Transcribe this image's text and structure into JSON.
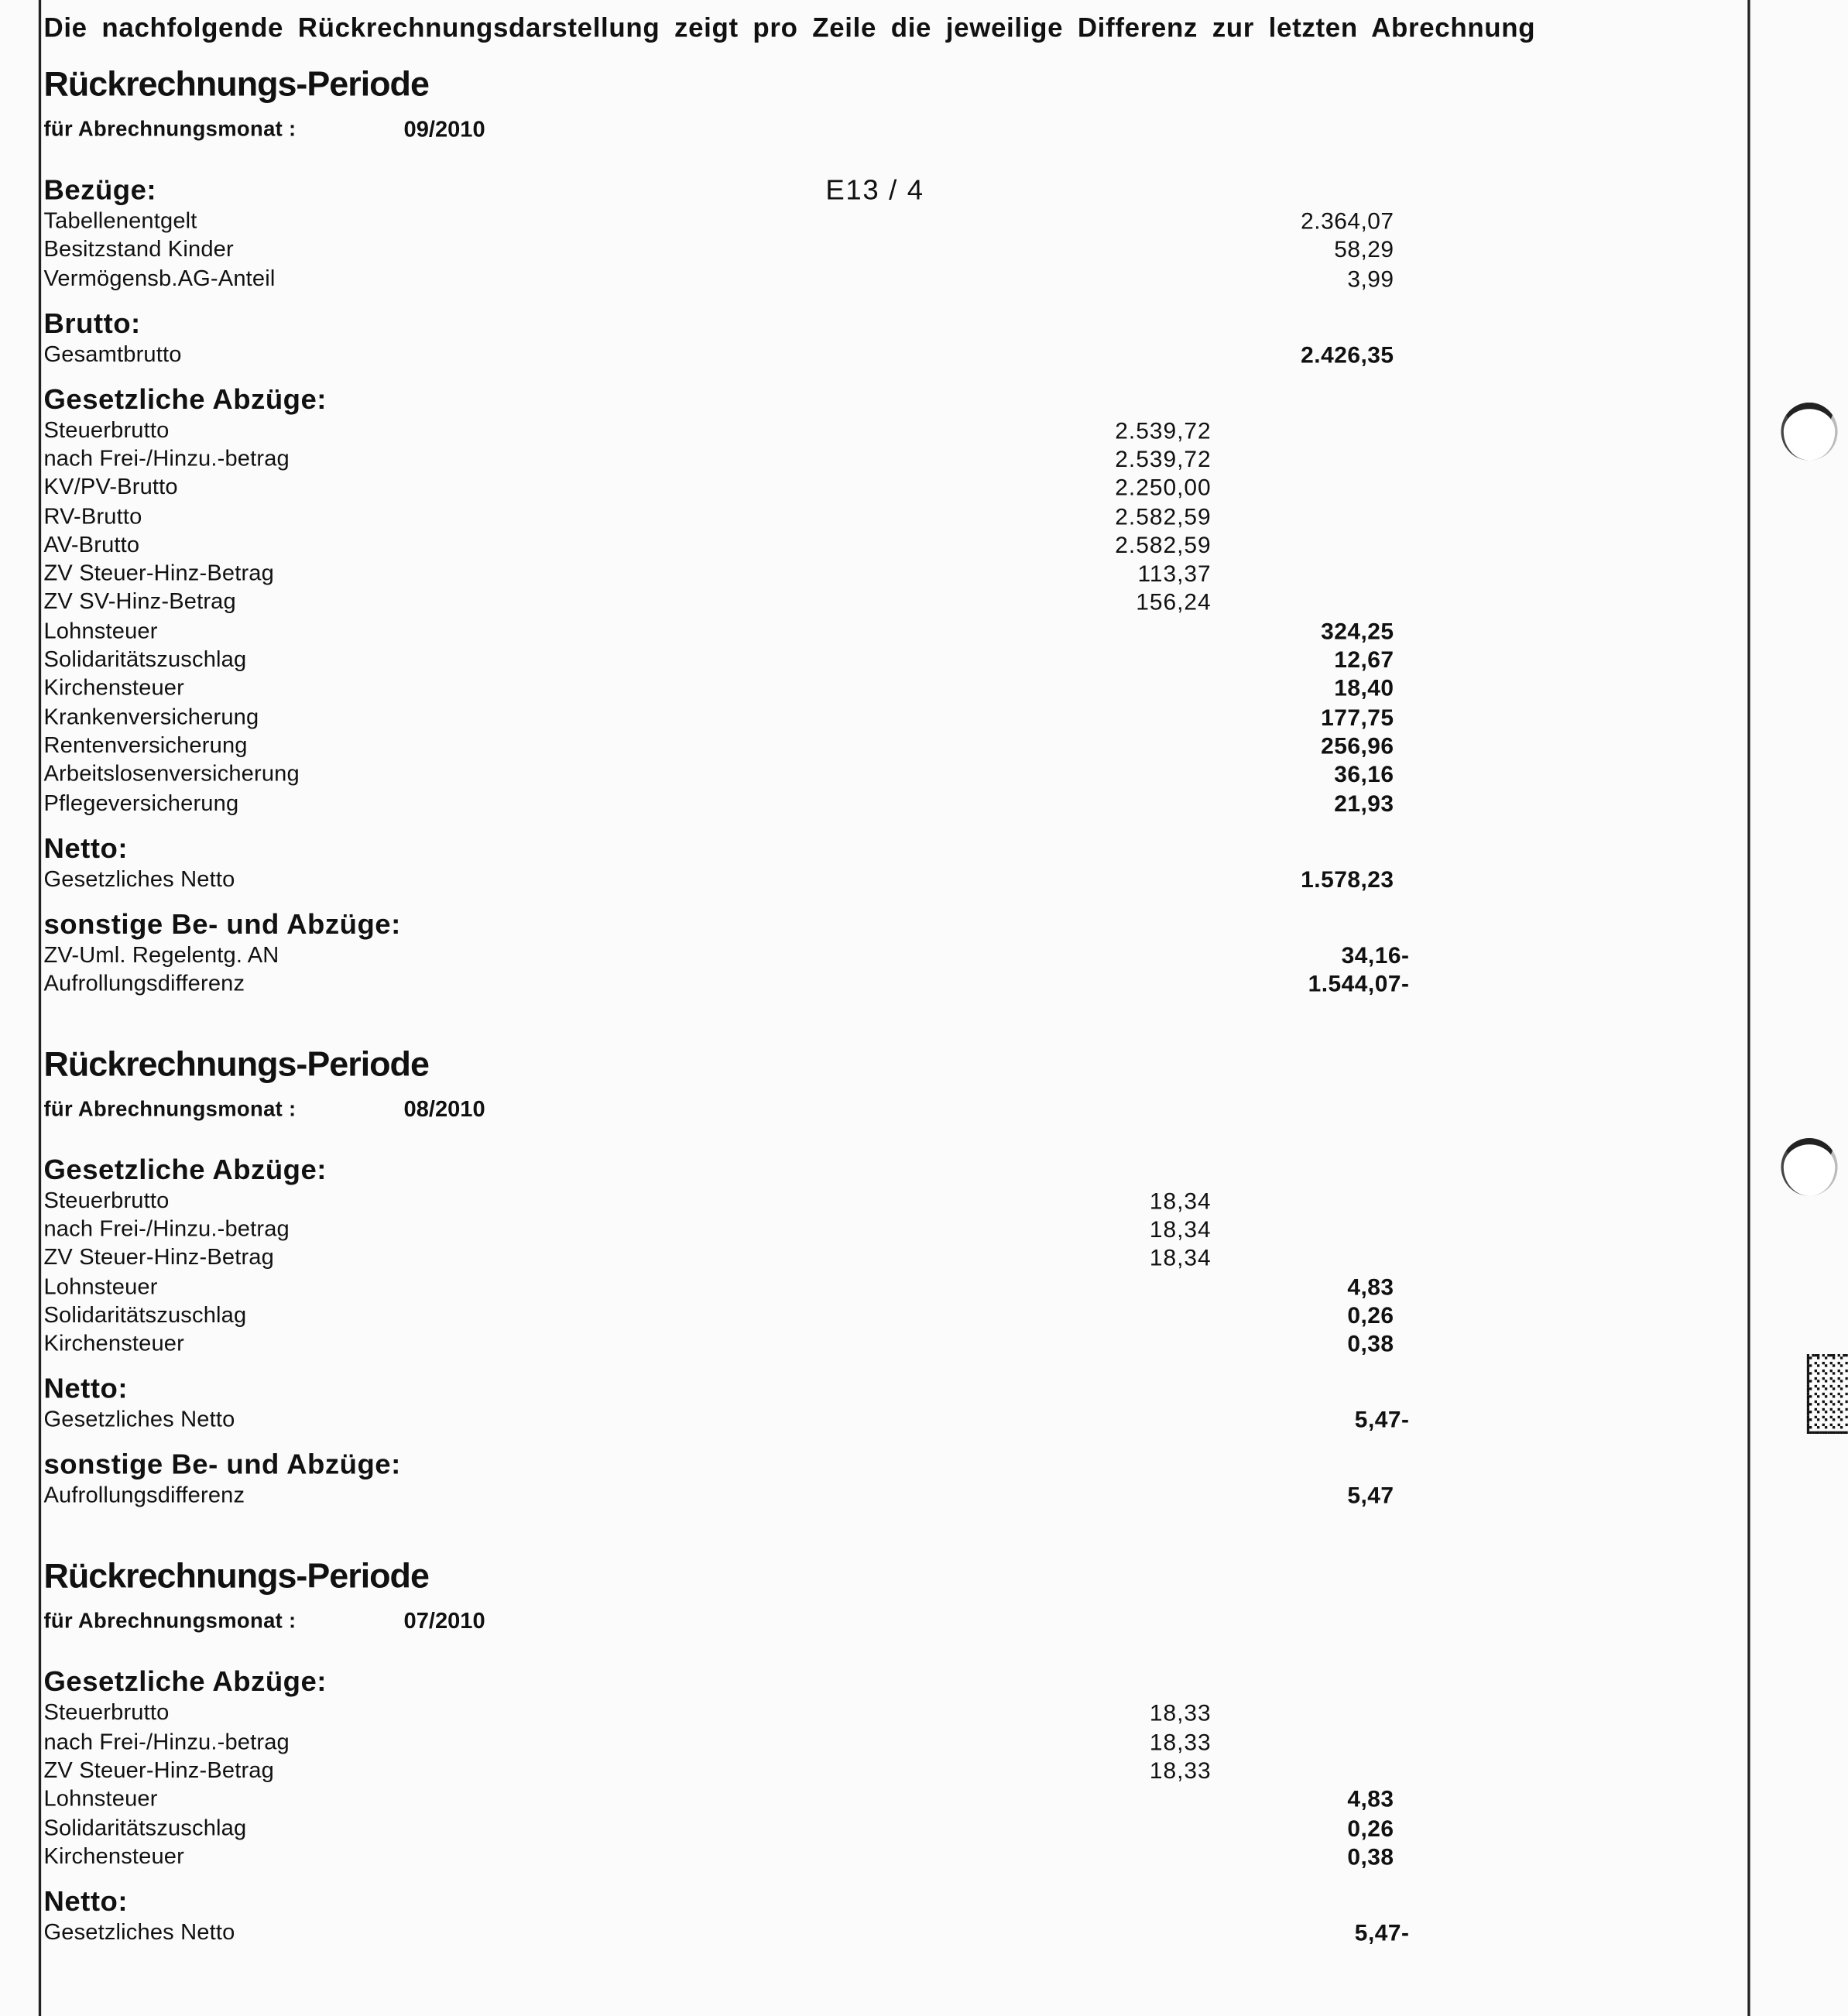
{
  "intro": "Die nachfolgende Rückrechnungsdarstellung zeigt pro Zeile die jeweilige Differenz zur letzten Abrechnung",
  "periods": [
    {
      "heading": "Rückrechnungs-Periode",
      "month_label": "für Abrechnungsmonat :",
      "month": "09/2010",
      "sections": [
        {
          "title": "Bezüge:",
          "grade": "E13 / 4",
          "rows": [
            {
              "label": "Tabellenentgelt",
              "right": "2.364,07"
            },
            {
              "label": "Besitzstand Kinder",
              "right": "58,29"
            },
            {
              "label": "Vermögensb.AG-Anteil",
              "right": "3,99"
            }
          ]
        },
        {
          "title": "Brutto:",
          "bold": true,
          "rows": [
            {
              "label": "Gesamtbrutto",
              "right": "2.426,35"
            }
          ]
        },
        {
          "title": "Gesetzliche Abzüge:",
          "bold": true,
          "rows": [
            {
              "label": "Steuerbrutto",
              "mid": "2.539,72"
            },
            {
              "label": "nach Frei-/Hinzu.-betrag",
              "mid": "2.539,72"
            },
            {
              "label": "KV/PV-Brutto",
              "mid": "2.250,00"
            },
            {
              "label": "RV-Brutto",
              "mid": "2.582,59"
            },
            {
              "label": "AV-Brutto",
              "mid": "2.582,59"
            },
            {
              "label": "ZV Steuer-Hinz-Betrag",
              "mid": "113,37"
            },
            {
              "label": "ZV SV-Hinz-Betrag",
              "mid": "156,24"
            },
            {
              "label": "Lohnsteuer",
              "right": "324,25"
            },
            {
              "label": "Solidaritätszuschlag",
              "right": "12,67"
            },
            {
              "label": "Kirchensteuer",
              "right": "18,40"
            },
            {
              "label": "Krankenversicherung",
              "right": "177,75"
            },
            {
              "label": "Rentenversicherung",
              "right": "256,96"
            },
            {
              "label": "Arbeitslosenversicherung",
              "right": "36,16"
            },
            {
              "label": "Pflegeversicherung",
              "right": "21,93"
            }
          ]
        },
        {
          "title": "Netto:",
          "bold": true,
          "rows": [
            {
              "label": "Gesetzliches Netto",
              "right": "1.578,23"
            }
          ]
        },
        {
          "title": "sonstige Be- und Abzüge:",
          "bold": true,
          "rows": [
            {
              "label": "ZV-Uml. Regelentg. AN",
              "right": "34,16-"
            },
            {
              "label": "Aufrollungsdifferenz",
              "right": "1.544,07-"
            }
          ]
        }
      ]
    },
    {
      "heading": "Rückrechnungs-Periode",
      "month_label": "für Abrechnungsmonat :",
      "month": "08/2010",
      "sections": [
        {
          "title": "Gesetzliche Abzüge:",
          "bold": true,
          "rows": [
            {
              "label": "Steuerbrutto",
              "mid": "18,34"
            },
            {
              "label": "nach Frei-/Hinzu.-betrag",
              "mid": "18,34"
            },
            {
              "label": "ZV Steuer-Hinz-Betrag",
              "mid": "18,34"
            },
            {
              "label": "Lohnsteuer",
              "right": "4,83"
            },
            {
              "label": "Solidaritätszuschlag",
              "right": "0,26"
            },
            {
              "label": "Kirchensteuer",
              "right": "0,38"
            }
          ]
        },
        {
          "title": "Netto:",
          "bold": true,
          "rows": [
            {
              "label": "Gesetzliches Netto",
              "right": "5,47-"
            }
          ]
        },
        {
          "title": "sonstige Be- und Abzüge:",
          "bold": true,
          "rows": [
            {
              "label": "Aufrollungsdifferenz",
              "right": "5,47"
            }
          ]
        }
      ]
    },
    {
      "heading": "Rückrechnungs-Periode",
      "month_label": "für Abrechnungsmonat :",
      "month": "07/2010",
      "sections": [
        {
          "title": "Gesetzliche Abzüge:",
          "bold": true,
          "rows": [
            {
              "label": "Steuerbrutto",
              "mid": "18,33"
            },
            {
              "label": "nach Frei-/Hinzu.-betrag",
              "mid": "18,33"
            },
            {
              "label": "ZV Steuer-Hinz-Betrag",
              "mid": "18,33"
            },
            {
              "label": "Lohnsteuer",
              "right": "4,83"
            },
            {
              "label": "Solidaritätszuschlag",
              "right": "0,26"
            },
            {
              "label": "Kirchensteuer",
              "right": "0,38"
            }
          ]
        },
        {
          "title": "Netto:",
          "bold": true,
          "rows": [
            {
              "label": "Gesetzliches Netto",
              "right": "5,47-"
            }
          ]
        }
      ]
    }
  ],
  "decor": {
    "barcode": "datamatrix-code",
    "punch_holes": 2
  }
}
